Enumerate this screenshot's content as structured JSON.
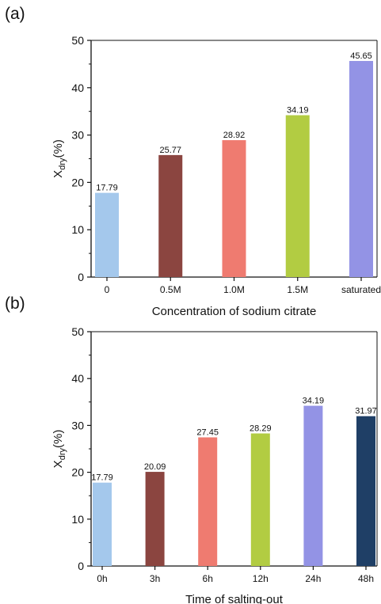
{
  "panels": {
    "a_label": "(a)",
    "b_label": "(b)"
  },
  "chart_data": [
    {
      "type": "bar",
      "categories": [
        "0",
        "0.5M",
        "1.0M",
        "1.5M",
        "saturated"
      ],
      "values": [
        17.79,
        25.77,
        28.92,
        34.19,
        45.65
      ],
      "value_labels": [
        "17.79",
        "25.77",
        "28.92",
        "34.19",
        "45.65"
      ],
      "colors": [
        "#a4c8ec",
        "#8b4540",
        "#ef7b70",
        "#b2cc42",
        "#9393e5"
      ],
      "xlabel": "Concentration of sodium citrate",
      "ylabel_main": "X",
      "ylabel_sub": "dry",
      "ylabel_unit": "(%)",
      "ylim": [
        0,
        50
      ],
      "yticks": [
        0,
        10,
        20,
        30,
        40,
        50
      ],
      "grid": false
    },
    {
      "type": "bar",
      "categories": [
        "0h",
        "3h",
        "6h",
        "12h",
        "24h",
        "48h"
      ],
      "values": [
        17.79,
        20.09,
        27.45,
        28.29,
        34.19,
        31.97
      ],
      "value_labels": [
        "17.79",
        "20.09",
        "27.45",
        "28.29",
        "34.19",
        "31.97"
      ],
      "colors": [
        "#a4c8ec",
        "#8b4540",
        "#ef7b70",
        "#b2cc42",
        "#9393e5",
        "#1f3f66"
      ],
      "xlabel": "Time of salting-out",
      "ylabel_main": "X",
      "ylabel_sub": "dry",
      "ylabel_unit": "(%)",
      "ylim": [
        0,
        50
      ],
      "yticks": [
        0,
        10,
        20,
        30,
        40,
        50
      ],
      "grid": false
    }
  ]
}
